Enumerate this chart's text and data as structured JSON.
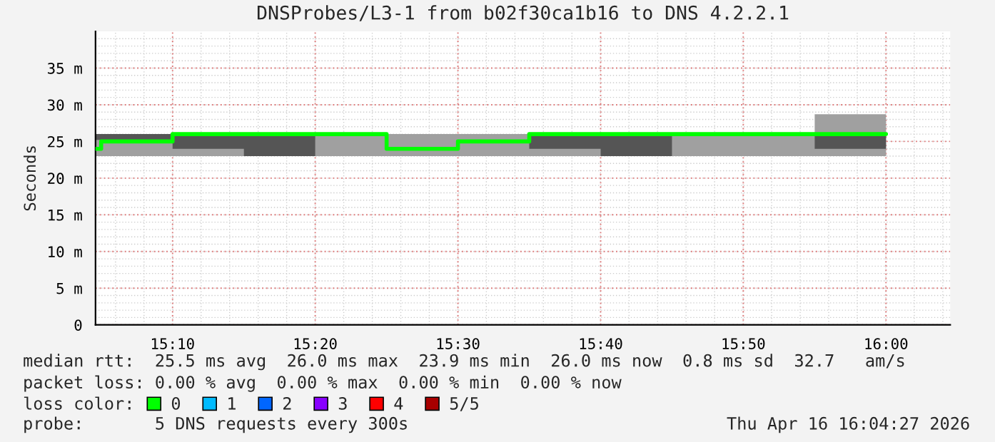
{
  "chart_data": {
    "type": "step",
    "title": "DNSProbes/L3-1 from b02f30ca1b16 to DNS 4.2.2.1",
    "ylabel": "Seconds",
    "x": [
      15.0767,
      15.0833,
      15.1667,
      15.25,
      15.3333,
      15.4167,
      15.5,
      15.5833,
      15.6667,
      15.75,
      15.8333,
      15.9167,
      16.0
    ],
    "series": [
      {
        "color": "#a0a0a0",
        "values": [
          null,
          null,
          null,
          null,
          null,
          null,
          null,
          null,
          null,
          null,
          null,
          null,
          null
        ],
        "lower": [
          23,
          23,
          23,
          23,
          23,
          23,
          23,
          23,
          23,
          23,
          23,
          23,
          23
        ],
        "upper": [
          26,
          26,
          26,
          26,
          26,
          26,
          26,
          26,
          26,
          26,
          26,
          28.7,
          28.7
        ]
      },
      {
        "color": "#555555",
        "values": [
          null,
          null,
          null,
          null,
          null,
          null,
          null,
          null,
          null,
          null,
          null,
          null,
          null
        ],
        "lower": [
          25.2,
          25.2,
          24,
          23,
          25,
          null,
          null,
          24,
          23,
          25,
          null,
          24,
          24
        ],
        "upper": [
          26,
          26,
          26,
          26,
          26,
          null,
          null,
          26,
          26,
          26,
          null,
          26,
          26
        ]
      },
      {
        "name": "0",
        "color": "#00ff00",
        "values": [
          24,
          25,
          26,
          26,
          26,
          24,
          25,
          26,
          26,
          26,
          26,
          26,
          26
        ]
      },
      {
        "name": "1",
        "color": "#00bbff",
        "values": [
          null,
          null,
          null,
          null,
          null,
          null,
          null,
          null,
          null,
          null,
          null,
          null,
          null
        ]
      },
      {
        "name": "2",
        "color": "#0066ff",
        "values": [
          null,
          null,
          null,
          null,
          null,
          null,
          null,
          null,
          null,
          null,
          null,
          null,
          null
        ]
      },
      {
        "name": "3",
        "color": "#8800ff",
        "values": [
          null,
          null,
          null,
          null,
          null,
          null,
          null,
          null,
          null,
          null,
          null,
          null,
          null
        ]
      },
      {
        "name": "4",
        "color": "#ff0000",
        "values": [
          null,
          null,
          null,
          null,
          null,
          null,
          null,
          null,
          null,
          null,
          null,
          null,
          null
        ]
      },
      {
        "name": "5/5",
        "color": "#a80000",
        "values": [
          null,
          null,
          null,
          null,
          null,
          null,
          null,
          null,
          null,
          null,
          null,
          null,
          null
        ]
      }
    ],
    "legend_title": "loss color:",
    "legend": "bottom",
    "grid": true,
    "xlim": [
      15.0767,
      16.075
    ],
    "xticks": [
      {
        "value": 15.1667,
        "label": "15:10"
      },
      {
        "value": 15.3333,
        "label": "15:20"
      },
      {
        "value": 15.5,
        "label": "15:30"
      },
      {
        "value": 15.6667,
        "label": "15:40"
      },
      {
        "value": 15.8333,
        "label": "15:50"
      },
      {
        "value": 16.0,
        "label": "16:00"
      }
    ],
    "ylim": [
      0,
      40
    ],
    "yticks": [
      0,
      {
        "value": 5,
        "label": "5 m"
      },
      {
        "value": 10,
        "label": "10 m"
      },
      {
        "value": 15,
        "label": "15 m"
      },
      {
        "value": 20,
        "label": "20 m"
      },
      {
        "value": 25,
        "label": "25 m"
      },
      {
        "value": 30,
        "label": "30 m"
      },
      {
        "value": 35,
        "label": "35 m"
      }
    ],
    "annotations": [
      "median rtt:  25.5 ms avg  26.0 ms max  23.9 ms min  26.0 ms now  0.8 ms sd  32.7   am/s",
      "packet loss: 0.00 % avg  0.00 % max  0.00 % min  0.00 % now",
      "probe:       5 DNS requests every 300s",
      "Thu Apr 16 16:04:27 2026"
    ]
  }
}
